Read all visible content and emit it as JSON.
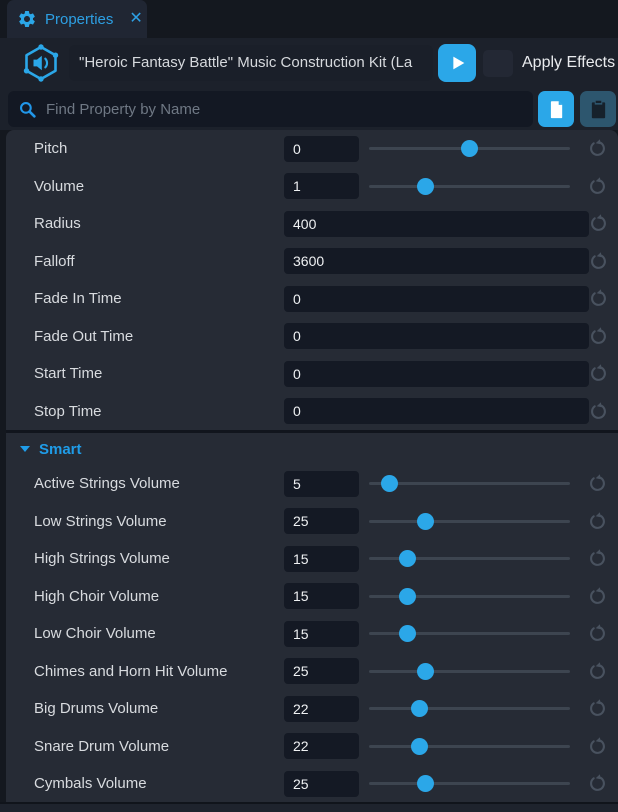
{
  "accent_color": "#2ba7e8",
  "tab": {
    "title": "Properties",
    "close_glyph": "✕"
  },
  "header": {
    "object_name": "\"Heroic Fantasy Battle\" Music Construction Kit (La",
    "apply_effects": {
      "label": "Apply Effects",
      "checked": false
    }
  },
  "search": {
    "placeholder": "Find Property by Name"
  },
  "properties": {
    "general": [
      {
        "label": "Pitch",
        "control": "slider",
        "value": "0",
        "thumb_pct": 50
      },
      {
        "label": "Volume",
        "control": "slider",
        "value": "1",
        "thumb_pct": 28
      },
      {
        "label": "Radius",
        "control": "text",
        "value": "400"
      },
      {
        "label": "Falloff",
        "control": "text",
        "value": "3600"
      },
      {
        "label": "Fade In Time",
        "control": "text",
        "value": "0"
      },
      {
        "label": "Fade Out Time",
        "control": "text",
        "value": "0"
      },
      {
        "label": "Start Time",
        "control": "text",
        "value": "0"
      },
      {
        "label": "Stop Time",
        "control": "text",
        "value": "0"
      }
    ],
    "smart": {
      "section_label": "Smart",
      "rows": [
        {
          "label": "Active Strings Volume",
          "control": "slider",
          "value": "5",
          "thumb_pct": 10
        },
        {
          "label": "Low Strings Volume",
          "control": "slider",
          "value": "25",
          "thumb_pct": 28
        },
        {
          "label": "High Strings Volume",
          "control": "slider",
          "value": "15",
          "thumb_pct": 19
        },
        {
          "label": "High Choir Volume",
          "control": "slider",
          "value": "15",
          "thumb_pct": 19
        },
        {
          "label": "Low Choir Volume",
          "control": "slider",
          "value": "15",
          "thumb_pct": 19
        },
        {
          "label": "Chimes and Horn Hit Volume",
          "control": "slider",
          "value": "25",
          "thumb_pct": 28
        },
        {
          "label": "Big Drums Volume",
          "control": "slider",
          "value": "22",
          "thumb_pct": 25
        },
        {
          "label": "Snare Drum Volume",
          "control": "slider",
          "value": "22",
          "thumb_pct": 25
        },
        {
          "label": "Cymbals Volume",
          "control": "slider",
          "value": "25",
          "thumb_pct": 28
        }
      ]
    }
  }
}
